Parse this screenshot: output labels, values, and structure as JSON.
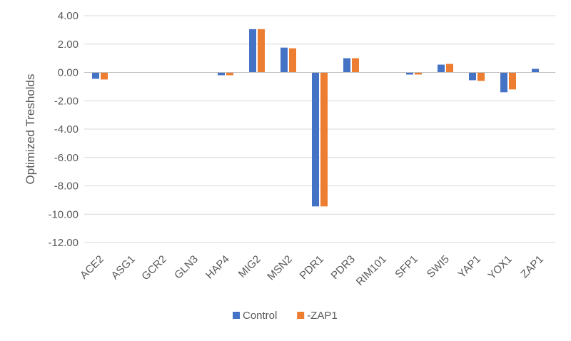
{
  "chart_data": {
    "type": "bar",
    "title": "",
    "xlabel": "",
    "ylabel": "Optimized Tresholds",
    "ylim": [
      -12,
      4
    ],
    "ytick_step": 2,
    "ytick_labels": [
      "4.00",
      "2.00",
      "0.00",
      "-2.00",
      "-4.00",
      "-6.00",
      "-8.00",
      "-10.00",
      "-12.00"
    ],
    "grid": true,
    "legend_position": "bottom",
    "categories": [
      "ACE2",
      "ASG1",
      "GCR2",
      "GLN3",
      "HAP4",
      "MIG2",
      "MSN2",
      "PDR1",
      "PDR3",
      "RIM101",
      "SFP1",
      "SWI5",
      "YAP1",
      "YOX1",
      "ZAP1"
    ],
    "series": [
      {
        "name": "Control",
        "color": "#4472C4",
        "values": [
          -0.45,
          0,
          0,
          0,
          -0.2,
          3.05,
          1.75,
          -9.45,
          1.0,
          0,
          -0.15,
          0.55,
          -0.55,
          -1.4,
          0.25
        ]
      },
      {
        "name": "-ZAP1",
        "color": "#ED7D31",
        "values": [
          -0.5,
          0,
          0,
          0,
          -0.2,
          3.05,
          1.7,
          -9.45,
          1.0,
          0,
          -0.15,
          0.6,
          -0.6,
          -1.2,
          0
        ]
      }
    ]
  }
}
